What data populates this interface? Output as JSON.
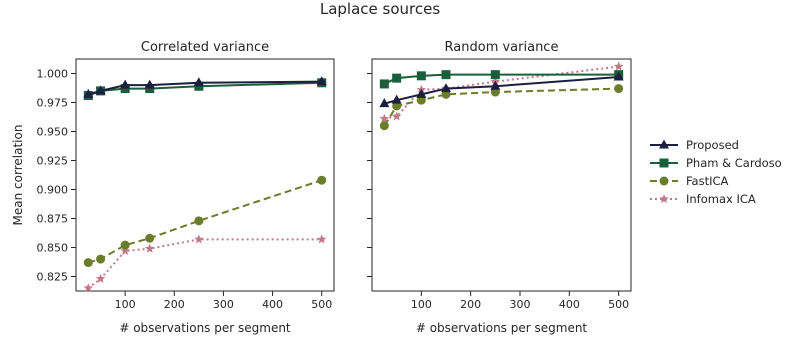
{
  "title": "Laplace sources",
  "colors": {
    "proposed": "#1c1f3f",
    "pham": "#1b5e3b",
    "fastica": "#6b7d2a",
    "infomax": "#c27a8a"
  },
  "legend": {
    "placement": "right",
    "entries": [
      "Proposed",
      "Pham & Cardoso",
      "FastICA",
      "Infomax ICA"
    ]
  },
  "chart_data": [
    {
      "type": "line",
      "title": "Correlated variance",
      "xlabel": "# observations per segment",
      "ylabel": "Mean correlation",
      "xlim": [
        0,
        525
      ],
      "ylim": [
        0.8125,
        1.0125
      ],
      "xticks": [
        100,
        200,
        300,
        400,
        500
      ],
      "yticks": [
        0.825,
        0.85,
        0.875,
        0.9,
        0.925,
        0.95,
        0.975,
        1.0
      ],
      "ytick_labels": [
        "0.825",
        "0.850",
        "0.875",
        "0.900",
        "0.925",
        "0.950",
        "0.975",
        "1.000"
      ],
      "grid": false,
      "x": [
        25,
        50,
        100,
        150,
        250,
        500
      ],
      "series": [
        {
          "name": "Proposed",
          "marker": "triangle",
          "dash": "solid",
          "values": [
            0.982,
            0.985,
            0.99,
            0.99,
            0.992,
            0.993
          ]
        },
        {
          "name": "Pham & Cardoso",
          "marker": "square",
          "dash": "solid",
          "values": [
            0.981,
            0.985,
            0.987,
            0.987,
            0.989,
            0.992
          ]
        },
        {
          "name": "FastICA",
          "marker": "circle",
          "dash": "dashed",
          "values": [
            0.837,
            0.84,
            0.852,
            0.858,
            0.873,
            0.908
          ]
        },
        {
          "name": "Infomax ICA",
          "marker": "star",
          "dash": "dotted",
          "values": [
            0.815,
            0.823,
            0.847,
            0.849,
            0.857,
            0.857
          ]
        }
      ]
    },
    {
      "type": "line",
      "title": "Random variance",
      "xlabel": "# observations per segment",
      "ylabel": "",
      "xlim": [
        0,
        525
      ],
      "ylim": [
        0.8125,
        1.0125
      ],
      "xticks": [
        100,
        200,
        300,
        400,
        500
      ],
      "yticks": [
        0.825,
        0.85,
        0.875,
        0.9,
        0.925,
        0.95,
        0.975,
        1.0
      ],
      "ytick_labels": [],
      "grid": false,
      "x": [
        25,
        50,
        100,
        150,
        250,
        500
      ],
      "series": [
        {
          "name": "Proposed",
          "marker": "triangle",
          "dash": "solid",
          "values": [
            0.974,
            0.977,
            0.982,
            0.987,
            0.989,
            0.997
          ]
        },
        {
          "name": "Pham & Cardoso",
          "marker": "square",
          "dash": "solid",
          "values": [
            0.991,
            0.996,
            0.998,
            0.999,
            0.999,
            0.999
          ]
        },
        {
          "name": "FastICA",
          "marker": "circle",
          "dash": "dashed",
          "values": [
            0.955,
            0.972,
            0.977,
            0.982,
            0.984,
            0.987
          ]
        },
        {
          "name": "Infomax ICA",
          "marker": "star",
          "dash": "dotted",
          "values": [
            0.961,
            0.963,
            0.986,
            0.987,
            0.993,
            1.006
          ]
        }
      ]
    }
  ]
}
